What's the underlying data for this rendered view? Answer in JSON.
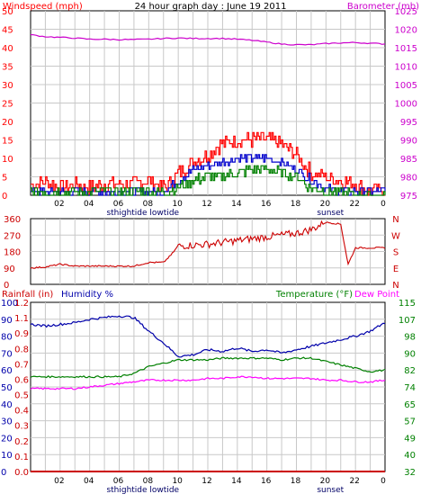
{
  "title": "24 hour graph day : June 19 2011",
  "colors": {
    "wind": "#ff0000",
    "gust": "#0000cc",
    "avg": "#008000",
    "barometer": "#cc00cc",
    "direction": "#cc0000",
    "humidity": "#0000aa",
    "temperature": "#008000",
    "dewpoint": "#ff00ff",
    "rainfall": "#cc0000",
    "grid": "#c8c8c8",
    "frame": "#000000"
  },
  "x_ticks": [
    "02",
    "04",
    "06",
    "08",
    "10",
    "12",
    "14",
    "16",
    "18",
    "20",
    "22",
    "0"
  ],
  "markers": {
    "tides": "sthightide  lowtide",
    "sunset": "sunset",
    "marker_2": "sunset"
  },
  "chart_data": [
    {
      "type": "line",
      "panel": "wind",
      "title": "24 hour graph day : June 19 2011",
      "ylabel_left": "Windspeed (mph)",
      "ylabel_right": "Barometer (mb)",
      "yticks_left": [
        "50",
        "45",
        "40",
        "35",
        "30",
        "25",
        "20",
        "15",
        "10",
        "5",
        "0"
      ],
      "yticks_right": [
        "1025",
        "1020",
        "1015",
        "1010",
        "1005",
        "1000",
        "995",
        "990",
        "985",
        "980",
        "975"
      ],
      "ylim_left": [
        0,
        50
      ],
      "ylim_right": [
        975,
        1025
      ],
      "x_hours": [
        0,
        1,
        2,
        3,
        4,
        5,
        6,
        7,
        8,
        9,
        10,
        11,
        12,
        13,
        14,
        15,
        16,
        17,
        18,
        19,
        20,
        21,
        22,
        23,
        24
      ],
      "series": [
        {
          "axis": "left",
          "color": "wind",
          "values": [
            3,
            4,
            2,
            3,
            2,
            3,
            3,
            3,
            4,
            2,
            6,
            9,
            11,
            14,
            15,
            15,
            15,
            14,
            11,
            6,
            5,
            4,
            3,
            1,
            1
          ]
        },
        {
          "axis": "left",
          "color": "gust",
          "values": [
            1,
            1,
            1,
            1,
            1,
            1,
            1,
            1,
            1,
            1,
            4,
            7,
            8,
            9,
            10,
            10,
            10,
            9,
            7,
            4,
            2,
            1,
            1,
            1,
            1
          ]
        },
        {
          "axis": "left",
          "color": "avg",
          "values": [
            1,
            1,
            1,
            1,
            1,
            1,
            1,
            1,
            1,
            1,
            2,
            4,
            5,
            5,
            6,
            7,
            7,
            6,
            5,
            2,
            1,
            1,
            0,
            0,
            0
          ]
        },
        {
          "axis": "right",
          "color": "barometer",
          "values": [
            1018.5,
            1018,
            1017.8,
            1017.6,
            1017.3,
            1017.3,
            1017.2,
            1017.2,
            1017.3,
            1017.5,
            1017.6,
            1017.5,
            1017.5,
            1017.5,
            1017.3,
            1017,
            1016.5,
            1016,
            1015.8,
            1015.8,
            1016.1,
            1016.3,
            1016.4,
            1016.2,
            1016
          ]
        }
      ]
    },
    {
      "type": "line",
      "panel": "direction",
      "yticks_left": [
        "360",
        "270",
        "180",
        "90",
        "0"
      ],
      "yticks_right": [
        "N",
        "W",
        "S",
        "E",
        "N"
      ],
      "ylim": [
        0,
        360
      ],
      "series": [
        {
          "color": "direction",
          "x_hours": [
            0,
            1,
            2,
            3,
            4,
            5,
            6,
            7,
            8,
            9,
            9.5,
            10,
            12,
            14,
            16,
            18,
            19,
            19.5,
            20,
            21,
            21.5,
            22,
            23,
            24
          ],
          "values": [
            90,
            95,
            110,
            100,
            100,
            100,
            100,
            100,
            120,
            120,
            160,
            210,
            220,
            240,
            260,
            280,
            300,
            320,
            340,
            330,
            110,
            200,
            200,
            200
          ]
        }
      ]
    },
    {
      "type": "line",
      "panel": "humidity-temperature",
      "ylabel_left_1": "Rainfall (in)",
      "ylabel_left_2": "Humidity %",
      "ylabel_right_1": "Temperature (°F)",
      "ylabel_right_2": "Dew Point",
      "yticks_humidity": [
        "100",
        "90",
        "80",
        "70",
        "60",
        "50",
        "40",
        "30",
        "20",
        "10",
        "0"
      ],
      "yticks_rainfall": [
        "1.2",
        "1.1",
        "0.9",
        "0.8",
        "0.7",
        "0.6",
        "0.5",
        "0.4",
        "0.3",
        "0.2",
        "0.1",
        "0.0"
      ],
      "yticks_temperature": [
        "115",
        "107",
        "98",
        "90",
        "82",
        "74",
        "65",
        "57",
        "49",
        "40",
        "32"
      ],
      "ylim_humidity": [
        0,
        100
      ],
      "x_hours": [
        0,
        1,
        2,
        3,
        4,
        5,
        6,
        7,
        8,
        9,
        10,
        11,
        12,
        13,
        14,
        15,
        16,
        17,
        18,
        19,
        20,
        21,
        22,
        23,
        24
      ],
      "series": [
        {
          "name": "Humidity %",
          "color": "humidity",
          "values": [
            87,
            86,
            87,
            88,
            90,
            91,
            92,
            91,
            83,
            76,
            68,
            69,
            72,
            71,
            73,
            71,
            72,
            70,
            72,
            74,
            76,
            78,
            80,
            83,
            88
          ]
        },
        {
          "name": "Temperature (°F)",
          "color": "temperature",
          "values": [
            56,
            56,
            56,
            56,
            56,
            56,
            56,
            58,
            62,
            64,
            66,
            66,
            66,
            67,
            67,
            67,
            67,
            66,
            67,
            67,
            65,
            63,
            61,
            59,
            60
          ]
        },
        {
          "name": "Dew Point",
          "color": "dewpoint",
          "values": [
            49,
            49,
            49,
            49,
            50,
            51,
            52,
            53,
            54,
            54,
            54,
            54,
            55,
            55,
            56,
            56,
            55,
            55,
            55,
            55,
            54,
            54,
            53,
            53,
            54
          ]
        },
        {
          "name": "Rainfall (in)",
          "color": "rainfall",
          "values": [
            0,
            0,
            0,
            0,
            0,
            0,
            0,
            0,
            0,
            0,
            0,
            0,
            0,
            0,
            0,
            0,
            0,
            0,
            0,
            0,
            0,
            0,
            0,
            0,
            0
          ]
        }
      ]
    }
  ]
}
